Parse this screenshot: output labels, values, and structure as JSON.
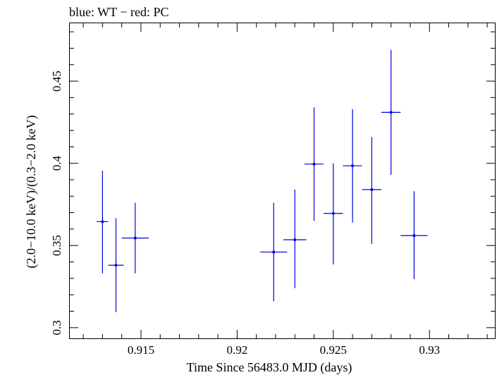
{
  "chart_data": {
    "type": "scatter",
    "title": "blue: WT − red: PC",
    "xlabel": "Time Since 56483.0 MJD (days)",
    "ylabel": "(2.0−10.0 keV)/(0.3−2.0 keV)",
    "xlim": [
      0.9113,
      0.9334
    ],
    "ylim": [
      0.2935,
      0.4852
    ],
    "x_ticks": [
      0.915,
      0.92,
      0.925,
      0.93
    ],
    "x_tick_labels": [
      "0.915",
      "0.92",
      "0.925",
      "0.93"
    ],
    "y_ticks": [
      0.3,
      0.35,
      0.4,
      0.45
    ],
    "y_tick_labels": [
      "0.3",
      "0.35",
      "0.4",
      "0.45"
    ],
    "grid": false,
    "series": [
      {
        "color": "#0000dd",
        "points": [
          {
            "x": 0.913,
            "xerr": 0.0003,
            "y": 0.3645,
            "ylo": 0.333,
            "yhi": 0.3955
          },
          {
            "x": 0.9137,
            "xerr": 0.0004,
            "y": 0.338,
            "ylo": 0.3095,
            "yhi": 0.3665
          },
          {
            "x": 0.9147,
            "xerr": 0.0007,
            "y": 0.3545,
            "ylo": 0.333,
            "yhi": 0.376
          },
          {
            "x": 0.9219,
            "xerr": 0.0007,
            "y": 0.346,
            "ylo": 0.316,
            "yhi": 0.376
          },
          {
            "x": 0.923,
            "xerr": 0.0006,
            "y": 0.3535,
            "ylo": 0.324,
            "yhi": 0.384
          },
          {
            "x": 0.924,
            "xerr": 0.0005,
            "y": 0.3995,
            "ylo": 0.365,
            "yhi": 0.434
          },
          {
            "x": 0.925,
            "xerr": 0.0005,
            "y": 0.3695,
            "ylo": 0.3385,
            "yhi": 0.4
          },
          {
            "x": 0.926,
            "xerr": 0.0005,
            "y": 0.3985,
            "ylo": 0.364,
            "yhi": 0.433
          },
          {
            "x": 0.927,
            "xerr": 0.0005,
            "y": 0.384,
            "ylo": 0.351,
            "yhi": 0.416
          },
          {
            "x": 0.928,
            "xerr": 0.0005,
            "y": 0.431,
            "ylo": 0.393,
            "yhi": 0.469
          },
          {
            "x": 0.9292,
            "xerr": 0.0007,
            "y": 0.356,
            "ylo": 0.3295,
            "yhi": 0.383
          }
        ]
      }
    ]
  }
}
